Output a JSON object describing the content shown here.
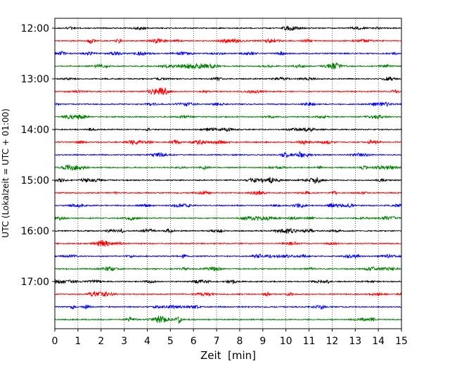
{
  "chart_data": {
    "type": "line",
    "title": "",
    "xlabel": "Zeit  [min]",
    "ylabel": "UTC (Lokalzeit = UTC + 01:00)",
    "xlim": [
      0,
      15
    ],
    "x_ticks": [
      "0",
      "1",
      "2",
      "3",
      "4",
      "5",
      "6",
      "7",
      "8",
      "9",
      "10",
      "11",
      "12",
      "13",
      "14",
      "15"
    ],
    "y_ticks": [
      "12:00",
      "13:00",
      "14:00",
      "15:00",
      "16:00",
      "17:00"
    ],
    "grid": "vertical dotted",
    "trace_interval_min": 15,
    "trace_start": "12:00",
    "trace_end": "17:45",
    "trace_colors": [
      "#000000",
      "#ff0000",
      "#0000ff",
      "#008000"
    ],
    "legend": "none"
  }
}
